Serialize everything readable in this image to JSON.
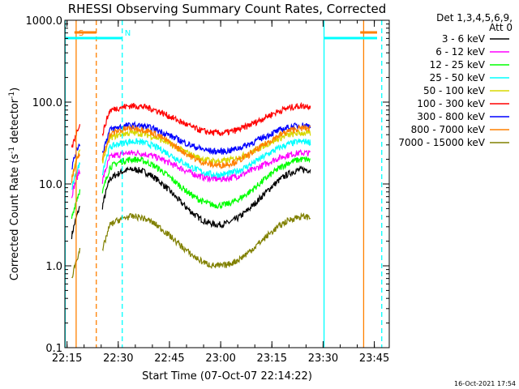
{
  "chart_data": {
    "type": "line",
    "title": "RHESSI Observing Summary Count Rates, Corrected",
    "xlabel": "Start Time (07-Oct-07 22:14:22)",
    "ylabel_parts": [
      "Corrected Count Rate (s",
      "-1",
      " detector",
      "-1",
      ")"
    ],
    "y_scale": "log",
    "ylim": [
      0.1,
      1000.0
    ],
    "ytick_labels": [
      "1000.0",
      "100.0",
      "10.0",
      "1.0",
      "0.1"
    ],
    "ytick_values": [
      1000,
      100,
      10,
      1,
      0.1
    ],
    "xlim_minutes": [
      0,
      95
    ],
    "xtick_labels": [
      "22:15",
      "22:30",
      "22:45",
      "23:00",
      "23:15",
      "23:30",
      "23:45"
    ],
    "xtick_minutes": [
      0.63,
      15.63,
      30.63,
      45.63,
      60.63,
      75.63,
      90.63
    ],
    "detector_info": [
      "Det 1,3,4,5,6,9,",
      "Att 0"
    ],
    "timestamp": "16-Oct-2021 17:54",
    "series": [
      {
        "name": "3 - 6 keV",
        "color": "#000000",
        "peak": 15,
        "min": 3.2
      },
      {
        "name": "6 - 12 keV",
        "color": "#ff00ff",
        "peak": 24,
        "min": 11.5
      },
      {
        "name": "12 - 25 keV",
        "color": "#00ff00",
        "peak": 20,
        "min": 5.5
      },
      {
        "name": "25 - 50 keV",
        "color": "#00ffff",
        "peak": 33,
        "min": 13
      },
      {
        "name": "50 - 100 keV",
        "color": "#d8d800",
        "peak": 42,
        "min": 19
      },
      {
        "name": "100 - 300 keV",
        "color": "#ff0000",
        "peak": 90,
        "min": 42
      },
      {
        "name": "300 - 800 keV",
        "color": "#0000ff",
        "peak": 52,
        "min": 25
      },
      {
        "name": "800 - 7000 keV",
        "color": "#ff8000",
        "peak": 48,
        "min": 17
      },
      {
        "name": "7000 - 15000 keV",
        "color": "#808000",
        "peak": 4,
        "min": 1
      }
    ],
    "flag_lines": [
      {
        "label": "S",
        "color": "#ff8000",
        "minute": 3.3,
        "style": "solid"
      },
      {
        "label": "",
        "color": "#ff8000",
        "minute": 9.2,
        "style": "dashed"
      },
      {
        "label": "N",
        "color": "#00ffff",
        "minute": 16.8,
        "style": "dashed"
      },
      {
        "label": "",
        "color": "#00ffff",
        "minute": 75.9,
        "style": "solid"
      },
      {
        "label": "",
        "color": "#ff8000",
        "minute": 87.5,
        "style": "solid"
      },
      {
        "label": "",
        "color": "#00ffff",
        "minute": 92.8,
        "style": "dashed"
      },
      {
        "label": "",
        "color": "#00ffff",
        "minute": 0.1,
        "style": "solid"
      }
    ]
  }
}
